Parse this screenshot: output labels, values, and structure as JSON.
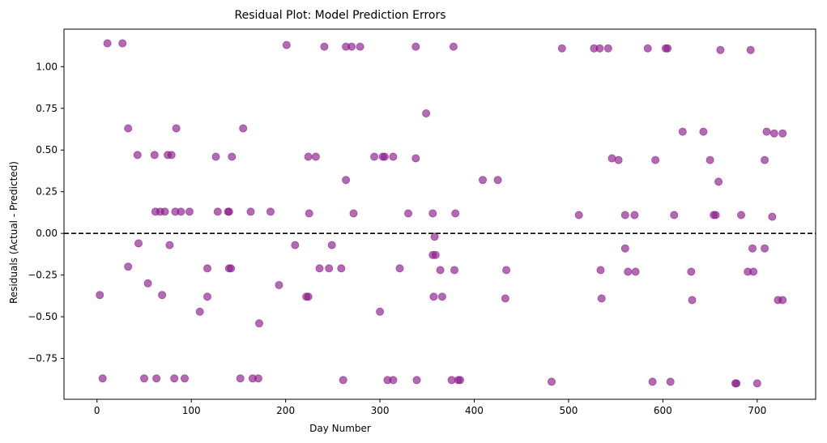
{
  "chart_data": {
    "type": "scatter",
    "title": "Residual Plot: Model Prediction Errors",
    "xlabel": "Day Number",
    "ylabel": "Residuals (Actual - Predicted)",
    "xlim": [
      -35,
      762
    ],
    "ylim": [
      -0.995,
      1.225
    ],
    "xticks": [
      0,
      100,
      200,
      300,
      400,
      500,
      600,
      700
    ],
    "xtick_labels": [
      "0",
      "100",
      "200",
      "300",
      "400",
      "500",
      "600",
      "700"
    ],
    "yticks": [
      -0.75,
      -0.5,
      -0.25,
      0.0,
      0.25,
      0.5,
      0.75,
      1.0
    ],
    "ytick_labels": [
      "−0.75",
      "−0.50",
      "−0.25",
      "0.00",
      "0.25",
      "0.50",
      "0.75",
      "1.00"
    ],
    "reference_line": {
      "y": 0.0,
      "style": "dashed",
      "color": "#000000"
    },
    "grid": false,
    "marker_color": "#8b1a8b",
    "marker_alpha": 0.65,
    "series": [
      {
        "x": [
          11,
          27,
          201,
          241,
          264,
          270,
          279,
          338,
          378,
          493,
          527,
          533,
          542,
          584,
          603,
          605,
          661,
          693,
          33,
          84,
          155,
          349,
          621,
          643,
          710,
          718,
          727,
          43,
          61,
          75,
          79,
          126,
          143,
          224,
          232,
          294,
          303,
          305,
          314,
          338,
          546,
          553,
          592,
          650,
          708,
          264,
          409,
          425,
          659,
          62,
          67,
          72,
          83,
          89,
          98,
          128,
          139,
          140,
          163,
          184,
          225,
          272,
          330,
          356,
          380,
          511,
          560,
          570,
          612,
          654,
          656,
          683,
          716,
          44,
          77,
          210,
          249,
          358,
          560,
          695,
          708,
          356,
          359,
          33,
          117,
          140,
          142,
          236,
          246,
          259,
          321,
          364,
          379,
          434,
          534,
          563,
          571,
          630,
          690,
          696,
          54,
          193,
          3,
          69,
          117,
          222,
          224,
          357,
          366,
          433,
          535,
          631,
          722,
          727,
          109,
          300,
          172,
          6,
          50,
          63,
          82,
          93,
          152,
          165,
          171,
          261,
          308,
          314,
          339,
          376,
          383,
          385,
          482,
          589,
          608,
          677,
          678,
          700
        ],
        "y": [
          1.14,
          1.14,
          1.13,
          1.12,
          1.12,
          1.12,
          1.12,
          1.12,
          1.12,
          1.11,
          1.11,
          1.11,
          1.11,
          1.11,
          1.11,
          1.11,
          1.1,
          1.1,
          0.63,
          0.63,
          0.63,
          0.72,
          0.61,
          0.61,
          0.61,
          0.6,
          0.6,
          0.47,
          0.47,
          0.47,
          0.47,
          0.46,
          0.46,
          0.46,
          0.46,
          0.46,
          0.46,
          0.46,
          0.46,
          0.45,
          0.45,
          0.44,
          0.44,
          0.44,
          0.44,
          0.32,
          0.32,
          0.32,
          0.31,
          0.13,
          0.13,
          0.13,
          0.13,
          0.13,
          0.13,
          0.13,
          0.13,
          0.13,
          0.13,
          0.13,
          0.12,
          0.12,
          0.12,
          0.12,
          0.12,
          0.11,
          0.11,
          0.11,
          0.11,
          0.11,
          0.11,
          0.11,
          0.1,
          -0.06,
          -0.07,
          -0.07,
          -0.07,
          -0.02,
          -0.09,
          -0.09,
          -0.09,
          -0.13,
          -0.13,
          -0.2,
          -0.21,
          -0.21,
          -0.21,
          -0.21,
          -0.21,
          -0.21,
          -0.21,
          -0.22,
          -0.22,
          -0.22,
          -0.22,
          -0.23,
          -0.23,
          -0.23,
          -0.23,
          -0.23,
          -0.3,
          -0.31,
          -0.37,
          -0.37,
          -0.38,
          -0.38,
          -0.38,
          -0.38,
          -0.38,
          -0.39,
          -0.39,
          -0.4,
          -0.4,
          -0.4,
          -0.47,
          -0.47,
          -0.54,
          -0.87,
          -0.87,
          -0.87,
          -0.87,
          -0.87,
          -0.87,
          -0.87,
          -0.87,
          -0.88,
          -0.88,
          -0.88,
          -0.88,
          -0.88,
          -0.88,
          -0.88,
          -0.89,
          -0.89,
          -0.89,
          -0.9,
          -0.9,
          -0.9
        ]
      }
    ]
  }
}
